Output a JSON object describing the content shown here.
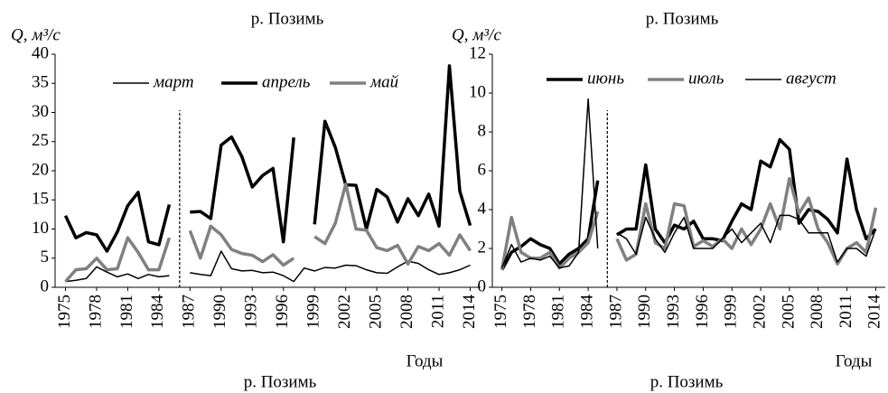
{
  "chart_data": [
    {
      "type": "line",
      "title": "р. Позимь",
      "ylabel": "Q, м³/с",
      "xlabel": "Годы",
      "caption": "р. Позимь",
      "x": [
        1975,
        1976,
        1977,
        1978,
        1979,
        1980,
        1981,
        1982,
        1983,
        1984,
        1985,
        1986,
        1987,
        1988,
        1989,
        1990,
        1991,
        1992,
        1993,
        1994,
        1995,
        1996,
        1997,
        1998,
        1999,
        2000,
        2001,
        2002,
        2003,
        2004,
        2005,
        2006,
        2007,
        2008,
        2009,
        2010,
        2011,
        2012,
        2013,
        2014
      ],
      "xlim": [
        1974,
        2015
      ],
      "xticks": [
        1975,
        1978,
        1981,
        1984,
        1987,
        1990,
        1993,
        1996,
        1999,
        2002,
        2005,
        2008,
        2011,
        2014
      ],
      "ylim": [
        0,
        40
      ],
      "yticks": [
        0,
        5,
        10,
        15,
        20,
        25,
        30,
        35,
        40
      ],
      "divider_x": 1986,
      "series": [
        {
          "name": "март",
          "color": "#000000",
          "width": 1.5,
          "values": [
            1.0,
            1.2,
            1.5,
            3.5,
            2.6,
            1.8,
            2.3,
            1.5,
            2.2,
            1.8,
            2.0,
            null,
            2.5,
            2.2,
            2.0,
            6.2,
            3.2,
            2.8,
            2.9,
            2.5,
            2.6,
            2.0,
            1.0,
            3.3,
            2.8,
            3.4,
            3.3,
            3.8,
            3.7,
            3.0,
            2.5,
            2.4,
            3.5,
            4.5,
            4.1,
            3.0,
            2.2,
            2.5,
            3.0,
            3.8
          ]
        },
        {
          "name": "апрель",
          "color": "#000000",
          "width": 3.5,
          "values": [
            12.3,
            8.5,
            9.4,
            9.0,
            6.2,
            9.5,
            14.0,
            16.3,
            7.8,
            7.3,
            14.2,
            null,
            12.9,
            13.0,
            11.8,
            24.4,
            25.8,
            22.4,
            17.2,
            19.2,
            20.4,
            7.8,
            25.7,
            null,
            10.8,
            28.5,
            24.0,
            17.6,
            17.5,
            10.0,
            16.8,
            15.5,
            11.2,
            15.2,
            12.3,
            16.0,
            10.5,
            38.0,
            16.5,
            10.6
          ]
        },
        {
          "name": "май",
          "color": "#808080",
          "width": 3.5,
          "values": [
            1.0,
            3.0,
            3.2,
            5.0,
            3.0,
            3.2,
            8.5,
            6.0,
            3.0,
            3.0,
            8.5,
            null,
            9.7,
            5.0,
            10.5,
            9.0,
            6.5,
            5.8,
            5.5,
            4.4,
            5.6,
            3.8,
            5.0,
            null,
            8.7,
            7.5,
            11.0,
            17.7,
            10.0,
            9.8,
            6.8,
            6.3,
            7.2,
            4.0,
            7.0,
            6.3,
            7.5,
            5.5,
            9.0,
            6.3
          ]
        }
      ]
    },
    {
      "type": "line",
      "title": "р. Позимь",
      "ylabel": "Q, м³/с",
      "xlabel": "Годы",
      "caption": "р. Позимь",
      "x": [
        1975,
        1976,
        1977,
        1978,
        1979,
        1980,
        1981,
        1982,
        1983,
        1984,
        1985,
        1986,
        1987,
        1988,
        1989,
        1990,
        1991,
        1992,
        1993,
        1994,
        1995,
        1996,
        1997,
        1998,
        1999,
        2000,
        2001,
        2002,
        2003,
        2004,
        2005,
        2006,
        2007,
        2008,
        2009,
        2010,
        2011,
        2012,
        2013,
        2014
      ],
      "xlim": [
        1974,
        2015
      ],
      "xticks": [
        1975,
        1978,
        1981,
        1984,
        1987,
        1990,
        1993,
        1996,
        1999,
        2002,
        2005,
        2008,
        2011,
        2014
      ],
      "ylim": [
        0,
        12
      ],
      "yticks": [
        0,
        2,
        4,
        6,
        8,
        10,
        12
      ],
      "divider_x": 1986,
      "series": [
        {
          "name": "июнь",
          "color": "#000000",
          "width": 3.5,
          "values": [
            0.9,
            1.8,
            2.1,
            2.5,
            2.2,
            2.0,
            1.2,
            1.7,
            2.0,
            2.5,
            5.5,
            null,
            2.7,
            3.0,
            3.0,
            6.3,
            3.0,
            2.3,
            3.2,
            3.0,
            3.4,
            2.5,
            2.5,
            2.4,
            3.4,
            4.3,
            4.0,
            6.5,
            6.2,
            7.6,
            7.1,
            3.3,
            4.0,
            3.9,
            3.5,
            2.8,
            6.6,
            4.0,
            2.5,
            3.0
          ]
        },
        {
          "name": "июль",
          "color": "#808080",
          "width": 3.5,
          "values": [
            0.9,
            3.6,
            1.8,
            1.5,
            1.5,
            1.8,
            1.0,
            1.5,
            1.8,
            2.3,
            3.9,
            null,
            2.5,
            1.4,
            1.7,
            4.3,
            2.3,
            2.0,
            4.3,
            4.2,
            2.1,
            2.4,
            2.1,
            2.5,
            2.0,
            3.0,
            2.2,
            3.0,
            4.3,
            3.0,
            5.6,
            3.8,
            4.6,
            3.0,
            2.3,
            1.2,
            2.0,
            2.3,
            1.8,
            4.1
          ]
        },
        {
          "name": "август",
          "color": "#000000",
          "width": 1.5,
          "values": [
            1.0,
            2.2,
            1.3,
            1.5,
            1.4,
            1.6,
            1.0,
            1.1,
            1.8,
            9.7,
            2.0,
            null,
            2.8,
            2.5,
            1.7,
            3.6,
            2.5,
            1.8,
            2.8,
            3.6,
            2.0,
            2.0,
            2.0,
            2.5,
            3.0,
            2.3,
            2.8,
            3.3,
            2.3,
            3.7,
            3.7,
            3.5,
            2.8,
            2.8,
            2.8,
            1.3,
            2.0,
            2.0,
            1.6,
            3.0
          ]
        }
      ]
    }
  ]
}
